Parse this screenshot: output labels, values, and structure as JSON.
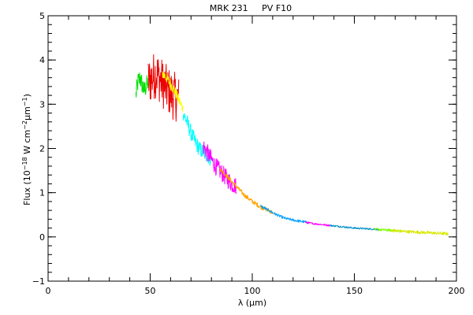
{
  "chart_data": {
    "type": "line",
    "title": "MRK 231     PV F10",
    "xlabel": "λ (μm)",
    "ylabel": "Flux (10",
    "ylabel_sup1": "−18",
    "ylabel_mid": " W cm",
    "ylabel_sup2": "−2",
    "ylabel_mid2": "μm",
    "ylabel_sup3": "−1",
    "ylabel_end": ")",
    "xlim": [
      0,
      200
    ],
    "ylim": [
      -1,
      5
    ],
    "x_ticks": [
      0,
      50,
      100,
      150,
      200
    ],
    "y_ticks": [
      -1,
      0,
      1,
      2,
      3,
      4,
      5
    ],
    "x_minor_step": 10,
    "y_minor_step": 0.2,
    "grid": false,
    "series": [
      {
        "color": "#00dd00",
        "noise": 0.22,
        "x": [
          43,
          44,
          45,
          46,
          47,
          48,
          49
        ],
        "y": [
          3.2,
          3.5,
          3.6,
          3.45,
          3.3,
          3.4,
          3.5
        ]
      },
      {
        "color": "#ee0000",
        "noise": 0.55,
        "x": [
          49,
          51,
          53,
          55,
          57,
          59,
          61,
          63,
          64
        ],
        "y": [
          3.5,
          3.6,
          3.7,
          3.55,
          3.4,
          3.3,
          3.2,
          3.15,
          3.1
        ]
      },
      {
        "color": "#ffff00",
        "noise": 0.12,
        "x": [
          56,
          58,
          60,
          62,
          64,
          66
        ],
        "y": [
          3.7,
          3.6,
          3.45,
          3.3,
          3.1,
          2.9
        ]
      },
      {
        "color": "#00ffff",
        "noise": 0.18,
        "x": [
          66,
          68,
          70,
          72,
          74,
          76,
          78,
          80
        ],
        "y": [
          2.8,
          2.6,
          2.35,
          2.15,
          2.0,
          1.9,
          1.85,
          1.75
        ]
      },
      {
        "color": "#ff00ff",
        "noise": 0.2,
        "x": [
          76,
          78,
          80,
          82,
          84,
          86,
          88,
          90,
          92
        ],
        "y": [
          2.05,
          1.9,
          1.75,
          1.6,
          1.5,
          1.4,
          1.3,
          1.2,
          1.15
        ]
      },
      {
        "color": "#ffa500",
        "noise": 0.05,
        "x": [
          84,
          88,
          92,
          96,
          100,
          104,
          108,
          110
        ],
        "y": [
          1.55,
          1.35,
          1.15,
          0.95,
          0.8,
          0.68,
          0.6,
          0.55
        ]
      },
      {
        "color": "#00a0ff",
        "noise": 0.03,
        "x": [
          104,
          108,
          112,
          116,
          120,
          124,
          128
        ],
        "y": [
          0.7,
          0.6,
          0.5,
          0.42,
          0.38,
          0.35,
          0.32
        ]
      },
      {
        "color": "#ff00ff",
        "noise": 0.02,
        "x": [
          126,
          130,
          134,
          138
        ],
        "y": [
          0.33,
          0.3,
          0.28,
          0.26
        ]
      },
      {
        "color": "#0090c8",
        "noise": 0.02,
        "x": [
          138,
          142,
          146,
          150,
          154,
          158,
          162
        ],
        "y": [
          0.26,
          0.24,
          0.22,
          0.2,
          0.19,
          0.18,
          0.17
        ]
      },
      {
        "color": "#7fff00",
        "noise": 0.03,
        "x": [
          160,
          164,
          168,
          172
        ],
        "y": [
          0.17,
          0.16,
          0.15,
          0.13
        ]
      },
      {
        "color": "#d8e800",
        "noise": 0.035,
        "x": [
          168,
          172,
          176,
          180,
          184,
          188,
          192,
          196
        ],
        "y": [
          0.15,
          0.13,
          0.12,
          0.11,
          0.1,
          0.09,
          0.08,
          0.07
        ]
      }
    ]
  }
}
